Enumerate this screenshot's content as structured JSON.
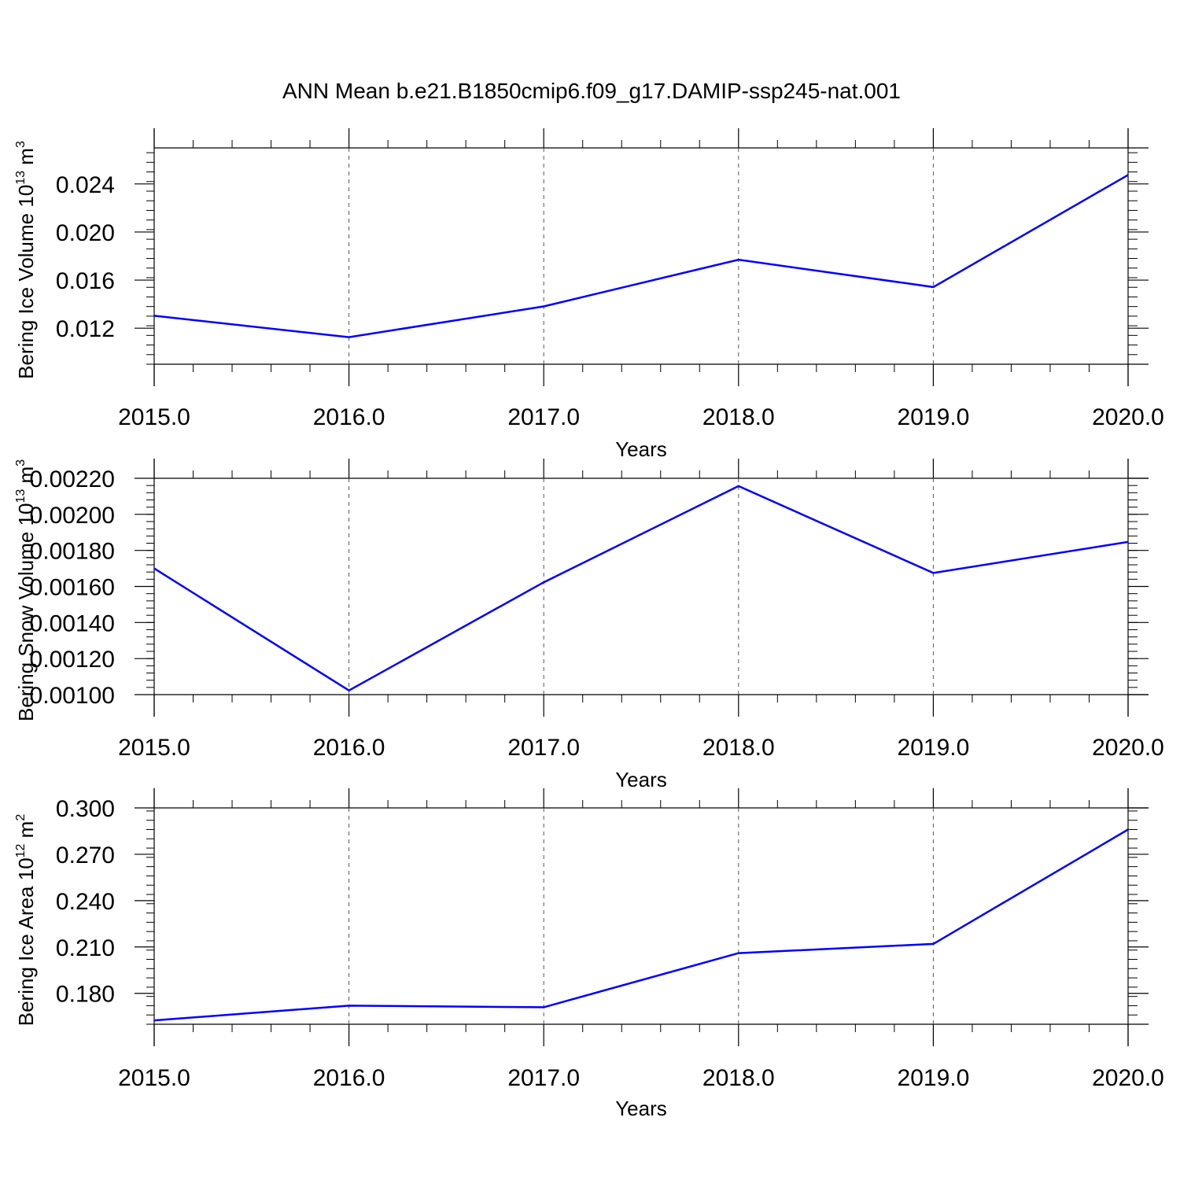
{
  "figure": {
    "title": "ANN Mean b.e21.B1850cmip6.f09_g17.DAMIP-ssp245-nat.001"
  },
  "colors": {
    "series": "#0000ff",
    "axis": "#000000",
    "grid": "#555555",
    "background": "#ffffff"
  },
  "chart_data": [
    {
      "type": "line",
      "ylabel_main": "Bering Ice Volume 10",
      "ylabel_sup": "13",
      "ylabel_unit": " m",
      "ylabel_unit_sup": "3",
      "xlabel": "Years",
      "x": [
        2015,
        2016,
        2017,
        2018,
        2019,
        2020
      ],
      "x_tick_labels": [
        "2015.0",
        "2016.0",
        "2017.0",
        "2018.0",
        "2019.0",
        "2020.0"
      ],
      "values": [
        0.01303,
        0.01125,
        0.01381,
        0.0177,
        0.01542,
        0.02475
      ],
      "ylim": [
        0.009,
        0.027
      ],
      "y_ticks": [
        0.012,
        0.016,
        0.02,
        0.024
      ],
      "y_tick_labels": [
        "0.012",
        "0.016",
        "0.020",
        "0.024"
      ],
      "grid": "vertical-dashed"
    },
    {
      "type": "line",
      "ylabel_main": "Bering Snow Volume 10",
      "ylabel_sup": "13",
      "ylabel_unit": " m",
      "ylabel_unit_sup": "3",
      "xlabel": "Years",
      "x": [
        2015,
        2016,
        2017,
        2018,
        2019,
        2020
      ],
      "x_tick_labels": [
        "2015.0",
        "2016.0",
        "2017.0",
        "2018.0",
        "2019.0",
        "2020.0"
      ],
      "values": [
        0.0017,
        0.001023,
        0.001623,
        0.002157,
        0.001675,
        0.001847
      ],
      "ylim": [
        0.001,
        0.0022
      ],
      "y_ticks": [
        0.001,
        0.0012,
        0.0014,
        0.0016,
        0.0018,
        0.002,
        0.0022
      ],
      "y_tick_labels": [
        "0.00100",
        "0.00120",
        "0.00140",
        "0.00160",
        "0.00180",
        "0.00200",
        "0.00220"
      ],
      "grid": "vertical-dashed"
    },
    {
      "type": "line",
      "ylabel_main": "Bering Ice Area 10",
      "ylabel_sup": "12",
      "ylabel_unit": " m",
      "ylabel_unit_sup": "2",
      "xlabel": "Years",
      "x": [
        2015,
        2016,
        2017,
        2018,
        2019,
        2020
      ],
      "x_tick_labels": [
        "2015.0",
        "2016.0",
        "2017.0",
        "2018.0",
        "2019.0",
        "2020.0"
      ],
      "values": [
        0.1625,
        0.172,
        0.171,
        0.206,
        0.212,
        0.286
      ],
      "ylim": [
        0.16,
        0.3
      ],
      "y_ticks": [
        0.18,
        0.21,
        0.24,
        0.27,
        0.3
      ],
      "y_tick_labels": [
        "0.180",
        "0.210",
        "0.240",
        "0.270",
        "0.300"
      ],
      "grid": "vertical-dashed"
    }
  ]
}
